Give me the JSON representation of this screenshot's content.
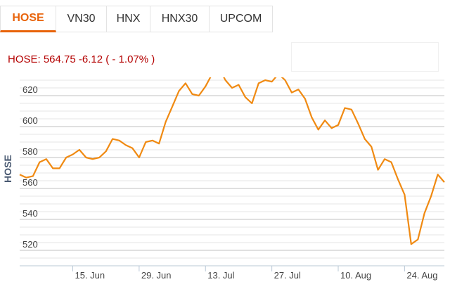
{
  "tabs": [
    {
      "label": "HOSE",
      "active": true
    },
    {
      "label": "VN30",
      "active": false
    },
    {
      "label": "HNX",
      "active": false
    },
    {
      "label": "HNX30",
      "active": false
    },
    {
      "label": "UPCOM",
      "active": false
    }
  ],
  "summary": {
    "text": "HOSE: 564.75 -6.12 ( - 1.07% )",
    "color": "#b40000"
  },
  "chart_data": {
    "type": "line",
    "title": "",
    "xlabel": "",
    "ylabel": "HOSE",
    "ylim": [
      510,
      630
    ],
    "y_ticks": [
      520,
      540,
      560,
      580,
      600,
      620
    ],
    "grid": true,
    "line_color": "#f08a12",
    "x_tick_labels": [
      "15. Jun",
      "29. Jun",
      "13. Jul",
      "27. Jul",
      "10. Aug",
      "24. Aug"
    ],
    "x_tick_index": [
      8,
      18,
      28,
      38,
      48,
      58
    ],
    "series": [
      {
        "values": [
          569,
          567,
          568,
          577,
          579,
          573,
          573,
          580,
          582,
          585,
          580,
          579,
          580,
          584,
          592,
          591,
          588,
          586,
          580,
          590,
          591,
          589,
          603,
          613,
          623,
          628,
          621,
          620,
          626,
          634,
          638,
          630,
          625,
          627,
          619,
          615,
          628,
          630,
          629,
          634,
          630,
          622,
          624,
          618,
          606,
          598,
          604,
          599,
          601,
          612,
          611,
          602,
          592,
          587,
          572,
          579,
          577,
          566,
          556,
          524,
          527,
          544,
          555,
          569,
          564
        ]
      }
    ]
  }
}
